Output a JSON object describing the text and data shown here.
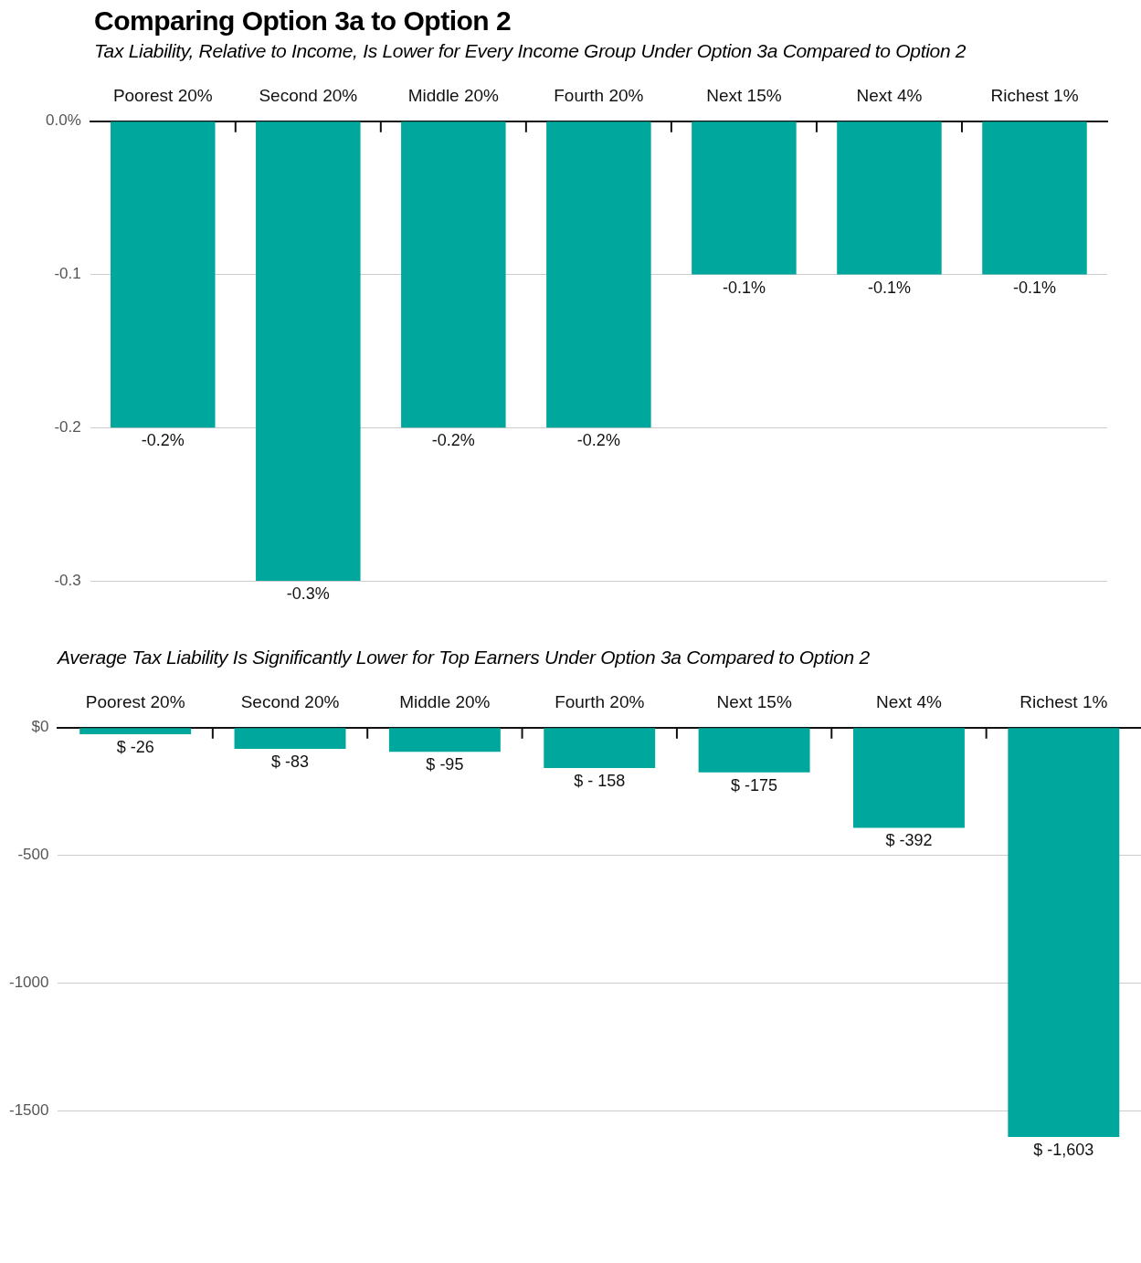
{
  "chart_data": [
    {
      "type": "bar",
      "title": "Comparing Option 3a to Option 2",
      "subtitle": "Tax Liability, Relative to Income, Is Lower for Every Income Group Under Option 3a Compared to Option 2",
      "categories": [
        "Poorest 20%",
        "Second 20%",
        "Middle 20%",
        "Fourth 20%",
        "Next 15%",
        "Next 4%",
        "Richest 1%"
      ],
      "values": [
        -0.2,
        -0.3,
        -0.2,
        -0.2,
        -0.1,
        -0.1,
        -0.1
      ],
      "value_labels": [
        "-0.2%",
        "-0.3%",
        "-0.2%",
        "-0.2%",
        "-0.1%",
        "-0.1%",
        "-0.1%"
      ],
      "color": "#00a79d",
      "ylim": [
        -0.3,
        0
      ],
      "yticks": [
        {
          "value": 0,
          "label": "0.0%"
        },
        -0.1,
        -0.2,
        -0.3
      ],
      "grid": "y"
    },
    {
      "type": "bar",
      "subtitle": "Average Tax Liability Is Significantly Lower for Top Earners Under Option 3a Compared to Option 2",
      "categories": [
        "Poorest 20%",
        "Second 20%",
        "Middle 20%",
        "Fourth 20%",
        "Next 15%",
        "Next 4%",
        "Richest 1%"
      ],
      "values": [
        -26,
        -83,
        -95,
        -158,
        -175,
        -392,
        -1603
      ],
      "value_labels": [
        "$ -26",
        "$ -83",
        "$ -95",
        "$ - 158",
        "$ -175",
        "$ -392",
        "$ -1,603"
      ],
      "color": "#00a79d",
      "ylim": [
        -1603,
        0
      ],
      "yticks": [
        {
          "value": 0,
          "label": "$0"
        },
        -500,
        -1000,
        -1500
      ],
      "grid": "y"
    }
  ]
}
